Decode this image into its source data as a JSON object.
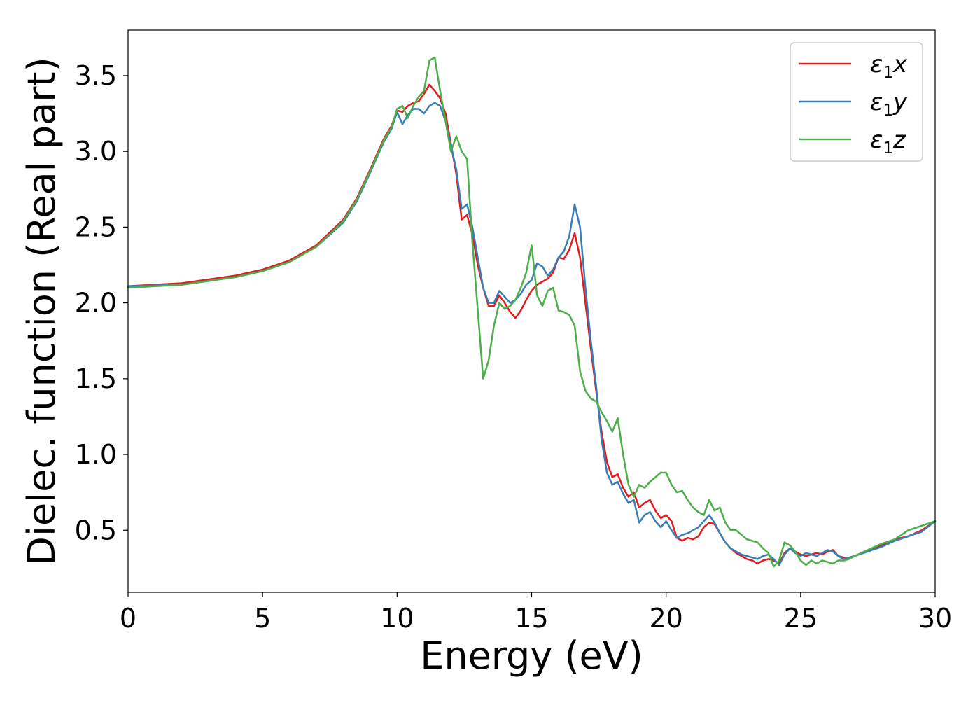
{
  "chart_data": {
    "type": "line",
    "title": "",
    "xlabel": "Energy (eV)",
    "ylabel": "Dielec. function (Real part)",
    "xlim": [
      0,
      30
    ],
    "ylim": [
      0.09,
      3.8
    ],
    "xticks": [
      0,
      5,
      10,
      15,
      20,
      25,
      30
    ],
    "yticks": [
      0.5,
      1.0,
      1.5,
      2.0,
      2.5,
      3.0,
      3.5
    ],
    "xtick_labels": [
      "0",
      "5",
      "10",
      "15",
      "20",
      "25",
      "30"
    ],
    "ytick_labels": [
      "0.5",
      "1.0",
      "1.5",
      "2.0",
      "2.5",
      "3.0",
      "3.5"
    ],
    "grid": false,
    "legend_position": "top-right",
    "series": [
      {
        "name_base": "ε",
        "name_sub": "1",
        "name_var": "x",
        "color": "#e41a1c",
        "x": [
          0,
          2,
          4,
          5,
          6,
          7,
          8,
          8.5,
          9,
          9.5,
          9.8,
          10.0,
          10.2,
          10.4,
          10.6,
          10.8,
          11.0,
          11.2,
          11.4,
          11.6,
          11.8,
          12.0,
          12.2,
          12.4,
          12.6,
          12.8,
          13.0,
          13.2,
          13.4,
          13.6,
          13.8,
          14.0,
          14.2,
          14.4,
          14.6,
          14.8,
          15.0,
          15.2,
          15.4,
          15.6,
          15.8,
          16.0,
          16.2,
          16.4,
          16.6,
          16.8,
          17.0,
          17.2,
          17.4,
          17.6,
          17.8,
          18.0,
          18.2,
          18.4,
          18.6,
          18.8,
          19.0,
          19.2,
          19.4,
          19.6,
          19.8,
          20.0,
          20.2,
          20.4,
          20.6,
          20.8,
          21.0,
          21.2,
          21.4,
          21.6,
          21.8,
          22.0,
          22.2,
          22.4,
          22.6,
          22.8,
          23.0,
          23.2,
          23.4,
          23.6,
          23.8,
          24.0,
          24.2,
          24.4,
          24.6,
          24.8,
          25.0,
          25.2,
          25.4,
          25.6,
          25.8,
          26.0,
          26.2,
          26.4,
          26.6,
          26.8,
          27.0,
          27.5,
          28.0,
          28.5,
          29.0,
          29.5,
          30.0
        ],
        "y": [
          2.11,
          2.13,
          2.18,
          2.22,
          2.28,
          2.38,
          2.55,
          2.69,
          2.88,
          3.08,
          3.17,
          3.27,
          3.26,
          3.3,
          3.32,
          3.33,
          3.38,
          3.44,
          3.4,
          3.35,
          3.25,
          3.05,
          2.85,
          2.55,
          2.58,
          2.45,
          2.25,
          2.1,
          1.98,
          1.98,
          2.05,
          2.0,
          1.94,
          1.9,
          1.95,
          2.02,
          2.08,
          2.12,
          2.14,
          2.16,
          2.2,
          2.3,
          2.29,
          2.35,
          2.46,
          2.3,
          2.0,
          1.7,
          1.42,
          1.15,
          0.95,
          0.85,
          0.87,
          0.78,
          0.72,
          0.75,
          0.65,
          0.68,
          0.7,
          0.63,
          0.58,
          0.6,
          0.56,
          0.45,
          0.43,
          0.45,
          0.44,
          0.46,
          0.52,
          0.55,
          0.54,
          0.48,
          0.42,
          0.38,
          0.35,
          0.33,
          0.31,
          0.3,
          0.28,
          0.3,
          0.31,
          0.3,
          0.28,
          0.35,
          0.38,
          0.36,
          0.34,
          0.33,
          0.34,
          0.35,
          0.34,
          0.36,
          0.37,
          0.33,
          0.32,
          0.31,
          0.33,
          0.36,
          0.4,
          0.44,
          0.46,
          0.5,
          0.56
        ]
      },
      {
        "name_base": "ε",
        "name_sub": "1",
        "name_var": "y",
        "color": "#377eb8",
        "x": [
          0,
          2,
          4,
          5,
          6,
          7,
          8,
          8.5,
          9,
          9.5,
          9.8,
          10.0,
          10.2,
          10.4,
          10.6,
          10.8,
          11.0,
          11.2,
          11.4,
          11.6,
          11.8,
          12.0,
          12.2,
          12.4,
          12.6,
          12.8,
          13.0,
          13.2,
          13.4,
          13.6,
          13.8,
          14.0,
          14.2,
          14.4,
          14.6,
          14.8,
          15.0,
          15.2,
          15.4,
          15.6,
          15.8,
          16.0,
          16.2,
          16.4,
          16.6,
          16.8,
          17.0,
          17.2,
          17.4,
          17.6,
          17.8,
          18.0,
          18.2,
          18.4,
          18.6,
          18.8,
          19.0,
          19.2,
          19.4,
          19.6,
          19.8,
          20.0,
          20.2,
          20.4,
          20.6,
          20.8,
          21.0,
          21.2,
          21.4,
          21.6,
          21.8,
          22.0,
          22.2,
          22.4,
          22.6,
          22.8,
          23.0,
          23.2,
          23.4,
          23.6,
          23.8,
          24.0,
          24.2,
          24.4,
          24.6,
          24.8,
          25.0,
          25.2,
          25.4,
          25.6,
          25.8,
          26.0,
          26.2,
          26.4,
          26.6,
          26.8,
          27.0,
          27.5,
          28.0,
          28.5,
          29.0,
          29.5,
          30.0
        ],
        "y": [
          2.11,
          2.12,
          2.17,
          2.21,
          2.27,
          2.37,
          2.53,
          2.67,
          2.86,
          3.06,
          3.15,
          3.26,
          3.18,
          3.24,
          3.28,
          3.28,
          3.25,
          3.3,
          3.32,
          3.3,
          3.2,
          3.04,
          2.88,
          2.62,
          2.65,
          2.5,
          2.3,
          2.1,
          2.0,
          2.0,
          2.08,
          2.04,
          2.0,
          2.02,
          2.06,
          2.12,
          2.15,
          2.26,
          2.24,
          2.18,
          2.22,
          2.3,
          2.34,
          2.44,
          2.65,
          2.5,
          2.1,
          1.75,
          1.45,
          1.1,
          0.88,
          0.8,
          0.82,
          0.74,
          0.68,
          0.7,
          0.55,
          0.6,
          0.62,
          0.56,
          0.52,
          0.56,
          0.5,
          0.45,
          0.47,
          0.48,
          0.5,
          0.52,
          0.56,
          0.6,
          0.55,
          0.48,
          0.42,
          0.38,
          0.36,
          0.34,
          0.33,
          0.32,
          0.31,
          0.33,
          0.34,
          0.31,
          0.27,
          0.34,
          0.38,
          0.35,
          0.33,
          0.35,
          0.34,
          0.33,
          0.35,
          0.37,
          0.36,
          0.33,
          0.31,
          0.32,
          0.33,
          0.36,
          0.39,
          0.43,
          0.46,
          0.49,
          0.56
        ]
      },
      {
        "name_base": "ε",
        "name_sub": "1",
        "name_var": "z",
        "color": "#4daf4a",
        "x": [
          0,
          2,
          4,
          5,
          6,
          7,
          8,
          8.5,
          9,
          9.5,
          9.8,
          10.0,
          10.2,
          10.4,
          10.6,
          10.8,
          11.0,
          11.2,
          11.4,
          11.6,
          11.8,
          12.0,
          12.2,
          12.4,
          12.6,
          12.8,
          13.0,
          13.2,
          13.4,
          13.6,
          13.8,
          14.0,
          14.2,
          14.4,
          14.6,
          14.8,
          15.0,
          15.2,
          15.4,
          15.6,
          15.8,
          16.0,
          16.2,
          16.4,
          16.6,
          16.8,
          17.0,
          17.2,
          17.4,
          17.6,
          17.8,
          18.0,
          18.2,
          18.4,
          18.6,
          18.8,
          19.0,
          19.2,
          19.4,
          19.6,
          19.8,
          20.0,
          20.2,
          20.4,
          20.6,
          20.8,
          21.0,
          21.2,
          21.4,
          21.6,
          21.8,
          22.0,
          22.2,
          22.4,
          22.6,
          22.8,
          23.0,
          23.2,
          23.4,
          23.6,
          23.8,
          24.0,
          24.2,
          24.4,
          24.6,
          24.8,
          25.0,
          25.2,
          25.4,
          25.6,
          25.8,
          26.0,
          26.2,
          26.4,
          26.6,
          26.8,
          27.0,
          27.5,
          28.0,
          28.5,
          29.0,
          29.5,
          30.0
        ],
        "y": [
          2.1,
          2.12,
          2.17,
          2.21,
          2.27,
          2.37,
          2.54,
          2.68,
          2.87,
          3.07,
          3.16,
          3.28,
          3.3,
          3.22,
          3.3,
          3.36,
          3.4,
          3.6,
          3.62,
          3.4,
          3.2,
          3.0,
          3.1,
          3.0,
          2.95,
          2.4,
          1.95,
          1.5,
          1.62,
          1.85,
          2.0,
          1.96,
          1.98,
          2.02,
          2.1,
          2.2,
          2.38,
          2.05,
          1.98,
          2.08,
          2.1,
          1.95,
          1.94,
          1.92,
          1.85,
          1.55,
          1.42,
          1.37,
          1.35,
          1.28,
          1.22,
          1.15,
          1.24,
          1.0,
          0.8,
          0.72,
          0.8,
          0.78,
          0.82,
          0.85,
          0.88,
          0.88,
          0.8,
          0.75,
          0.76,
          0.7,
          0.65,
          0.62,
          0.6,
          0.7,
          0.63,
          0.65,
          0.55,
          0.5,
          0.5,
          0.47,
          0.44,
          0.43,
          0.42,
          0.38,
          0.35,
          0.26,
          0.3,
          0.42,
          0.4,
          0.36,
          0.3,
          0.27,
          0.3,
          0.28,
          0.3,
          0.29,
          0.28,
          0.3,
          0.3,
          0.31,
          0.33,
          0.37,
          0.41,
          0.44,
          0.5,
          0.53,
          0.56
        ]
      }
    ]
  }
}
